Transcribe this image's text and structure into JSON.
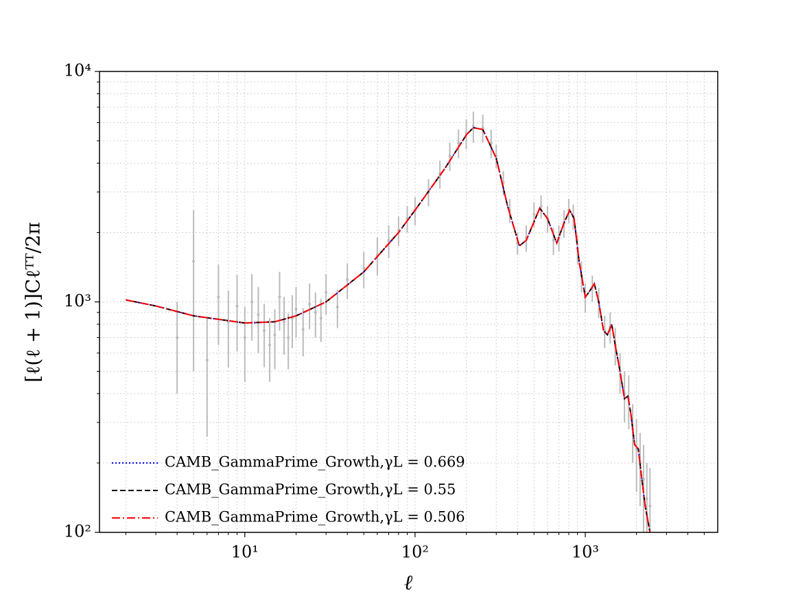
{
  "chart_data": {
    "type": "line",
    "xlabel": "ℓ",
    "ylabel": "[ℓ(ℓ + 1)]Cℓᵀᵀ/2π",
    "xscale": "log",
    "yscale": "log",
    "grid": true,
    "legend": "lower left",
    "xlim": [
      1.4,
      6000
    ],
    "ylim": [
      100,
      10000
    ],
    "xticks": [
      {
        "value": 10,
        "label": "10¹"
      },
      {
        "value": 100,
        "label": "10²"
      },
      {
        "value": 1000,
        "label": "10³"
      }
    ],
    "yticks": [
      {
        "value": 100,
        "label": "10²"
      },
      {
        "value": 1000,
        "label": "10³"
      },
      {
        "value": 10000,
        "label": "10⁴"
      }
    ],
    "xminorticks": [
      2,
      3,
      4,
      5,
      6,
      7,
      8,
      9,
      20,
      30,
      40,
      50,
      60,
      70,
      80,
      90,
      200,
      300,
      400,
      500,
      600,
      700,
      800,
      900,
      2000,
      3000,
      4000,
      5000
    ],
    "yminorticks": [
      200,
      300,
      400,
      500,
      600,
      700,
      800,
      900,
      2000,
      3000,
      4000,
      5000,
      6000,
      7000,
      8000,
      9000
    ],
    "x": [
      2,
      3,
      5,
      10,
      15,
      20,
      30,
      50,
      80,
      100,
      150,
      200,
      220,
      250,
      300,
      350,
      410,
      450,
      540,
      600,
      680,
      750,
      810,
      860,
      920,
      1000,
      1050,
      1130,
      1200,
      1280,
      1350,
      1430,
      1500,
      1600,
      1700,
      1780,
      1850,
      1950,
      2050,
      2150,
      2250,
      2400
    ],
    "series": [
      {
        "name": "CAMB_GammaPrime_Growth,γL = 0.669",
        "color": "#0000ff",
        "style": "dotted",
        "values": [
          1020,
          960,
          870,
          810,
          820,
          870,
          1000,
          1350,
          2000,
          2500,
          3800,
          5300,
          5700,
          5600,
          4200,
          2600,
          1750,
          1850,
          2550,
          2300,
          1800,
          2200,
          2500,
          2300,
          1500,
          1050,
          1100,
          1200,
          1000,
          750,
          720,
          800,
          650,
          500,
          380,
          390,
          330,
          240,
          230,
          170,
          130,
          100
        ]
      },
      {
        "name": "CAMB_GammaPrime_Growth,γL = 0.55",
        "color": "#000000",
        "style": "dashed",
        "values": [
          1020,
          960,
          870,
          810,
          820,
          870,
          1000,
          1350,
          2000,
          2500,
          3800,
          5300,
          5700,
          5600,
          4200,
          2600,
          1750,
          1850,
          2550,
          2300,
          1800,
          2200,
          2500,
          2300,
          1500,
          1050,
          1100,
          1200,
          1000,
          750,
          720,
          800,
          650,
          500,
          380,
          390,
          330,
          240,
          230,
          170,
          130,
          100
        ]
      },
      {
        "name": "CAMB_GammaPrime_Growth,γL = 0.506",
        "color": "#ff0000",
        "style": "dashdot",
        "values": [
          1020,
          960,
          870,
          810,
          820,
          870,
          1000,
          1350,
          2000,
          2500,
          3800,
          5300,
          5700,
          5600,
          4200,
          2600,
          1750,
          1850,
          2550,
          2300,
          1800,
          2200,
          2500,
          2300,
          1500,
          1050,
          1100,
          1200,
          1000,
          750,
          720,
          800,
          650,
          500,
          380,
          390,
          330,
          240,
          230,
          170,
          130,
          100
        ]
      }
    ],
    "data": {
      "color": "#bbbbbb",
      "x": [
        4,
        5,
        6,
        7,
        8,
        9,
        10,
        11,
        12,
        13,
        14,
        15,
        16,
        17,
        18,
        19,
        20,
        22,
        24,
        26,
        28,
        30,
        35,
        40,
        50,
        60,
        70,
        80,
        90,
        100,
        120,
        140,
        160,
        180,
        200,
        220,
        250,
        280,
        300,
        330,
        360,
        400,
        450,
        500,
        550,
        600,
        650,
        700,
        750,
        800,
        850,
        900,
        950,
        1000,
        1100,
        1200,
        1300,
        1400,
        1500,
        1600,
        1700,
        1800,
        1900,
        2000,
        2100,
        2200,
        2300,
        2400
      ],
      "values": [
        700,
        1500,
        560,
        1050,
        820,
        960,
        700,
        1000,
        880,
        750,
        650,
        720,
        1050,
        820,
        700,
        850,
        930,
        760,
        980,
        900,
        850,
        1100,
        950,
        1250,
        1400,
        1600,
        1850,
        2050,
        2300,
        2500,
        3000,
        3600,
        4300,
        4900,
        5400,
        5800,
        5700,
        4900,
        4300,
        3300,
        2500,
        1800,
        1900,
        2400,
        2600,
        2300,
        1850,
        1900,
        2200,
        2500,
        2350,
        1700,
        1300,
        1050,
        1150,
        1000,
        750,
        780,
        650,
        500,
        400,
        380,
        280,
        230,
        200,
        170,
        140,
        130
      ],
      "errors": [
        300,
        1000,
        300,
        400,
        300,
        350,
        250,
        320,
        280,
        230,
        200,
        210,
        300,
        230,
        190,
        220,
        230,
        180,
        220,
        200,
        180,
        220,
        180,
        220,
        250,
        300,
        300,
        300,
        300,
        350,
        400,
        500,
        600,
        700,
        800,
        900,
        800,
        700,
        500,
        400,
        300,
        200,
        250,
        300,
        300,
        300,
        250,
        250,
        300,
        300,
        300,
        250,
        200,
        150,
        150,
        150,
        120,
        120,
        120,
        100,
        100,
        100,
        80,
        80,
        70,
        70,
        60,
        60
      ]
    }
  }
}
